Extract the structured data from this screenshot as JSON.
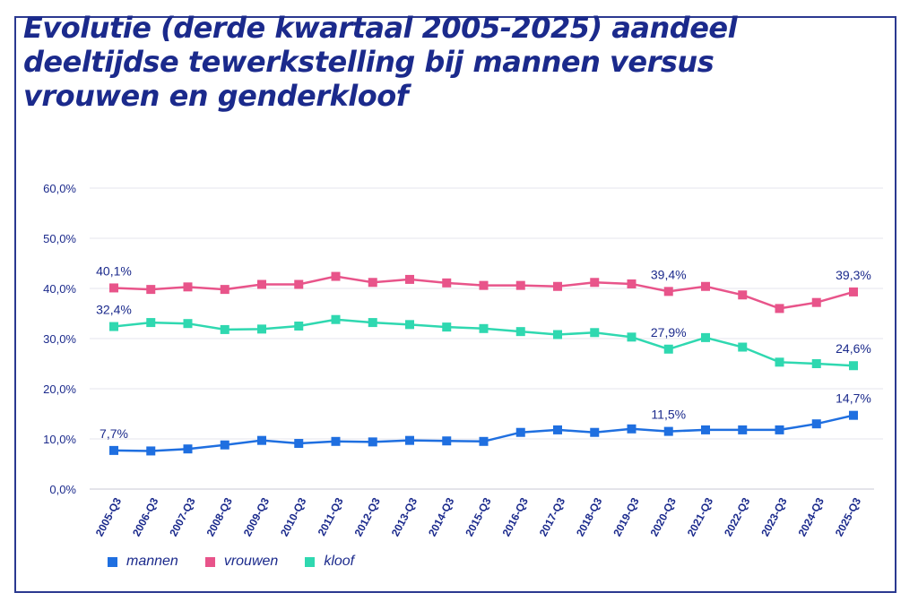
{
  "colors": {
    "mannen": "#1f6fe0",
    "vrouwen": "#e8548a",
    "kloof": "#2fd8b0",
    "text": "#1b2a8c",
    "grid": "#e6e6ee"
  },
  "chart_data": {
    "type": "line",
    "title": "Evolutie (derde kwartaal 2005-2025) aandeel deeltijdse tewerkstelling bij mannen versus vrouwen en genderkloof",
    "xlabel": "",
    "ylabel": "",
    "ylim": [
      0,
      60
    ],
    "yticks": [
      "0,0%",
      "10,0%",
      "20,0%",
      "30,0%",
      "40,0%",
      "50,0%",
      "60,0%"
    ],
    "categories": [
      "2005-Q3",
      "2006-Q3",
      "2007-Q3",
      "2008-Q3",
      "2009-Q3",
      "2010-Q3",
      "2011-Q3",
      "2012-Q3",
      "2013-Q3",
      "2014-Q3",
      "2015-Q3",
      "2016-Q3",
      "2017-Q3",
      "2018-Q3",
      "2019-Q3",
      "2020-Q3",
      "2021-Q3",
      "2022-Q3",
      "2023-Q3",
      "2024-Q3",
      "2025-Q3"
    ],
    "grid": true,
    "legend_position": "bottom-left",
    "series": [
      {
        "name": "mannen",
        "values": [
          7.7,
          7.6,
          8.0,
          8.8,
          9.7,
          9.1,
          9.5,
          9.4,
          9.7,
          9.6,
          9.5,
          11.3,
          11.8,
          11.3,
          12.0,
          11.5,
          11.8,
          11.8,
          11.8,
          13.0,
          14.7
        ]
      },
      {
        "name": "vrouwen",
        "values": [
          40.1,
          39.8,
          40.3,
          39.8,
          40.8,
          40.8,
          42.4,
          41.2,
          41.8,
          41.1,
          40.6,
          40.6,
          40.4,
          41.2,
          40.9,
          39.4,
          40.4,
          38.7,
          36.0,
          37.2,
          39.3
        ]
      },
      {
        "name": "kloof",
        "values": [
          32.4,
          33.2,
          33.0,
          31.8,
          31.9,
          32.5,
          33.8,
          33.2,
          32.8,
          32.3,
          32.0,
          31.4,
          30.8,
          31.2,
          30.3,
          27.9,
          30.2,
          28.3,
          25.3,
          25.0,
          24.6
        ]
      }
    ],
    "data_labels": [
      {
        "series": 0,
        "index": 0,
        "text": "7,7%"
      },
      {
        "series": 0,
        "index": 15,
        "text": "11,5%"
      },
      {
        "series": 0,
        "index": 20,
        "text": "14,7%"
      },
      {
        "series": 1,
        "index": 0,
        "text": "40,1%"
      },
      {
        "series": 1,
        "index": 15,
        "text": "39,4%"
      },
      {
        "series": 1,
        "index": 20,
        "text": "39,3%"
      },
      {
        "series": 2,
        "index": 0,
        "text": "32,4%"
      },
      {
        "series": 2,
        "index": 15,
        "text": "27,9%"
      },
      {
        "series": 2,
        "index": 20,
        "text": "24,6%"
      }
    ]
  }
}
